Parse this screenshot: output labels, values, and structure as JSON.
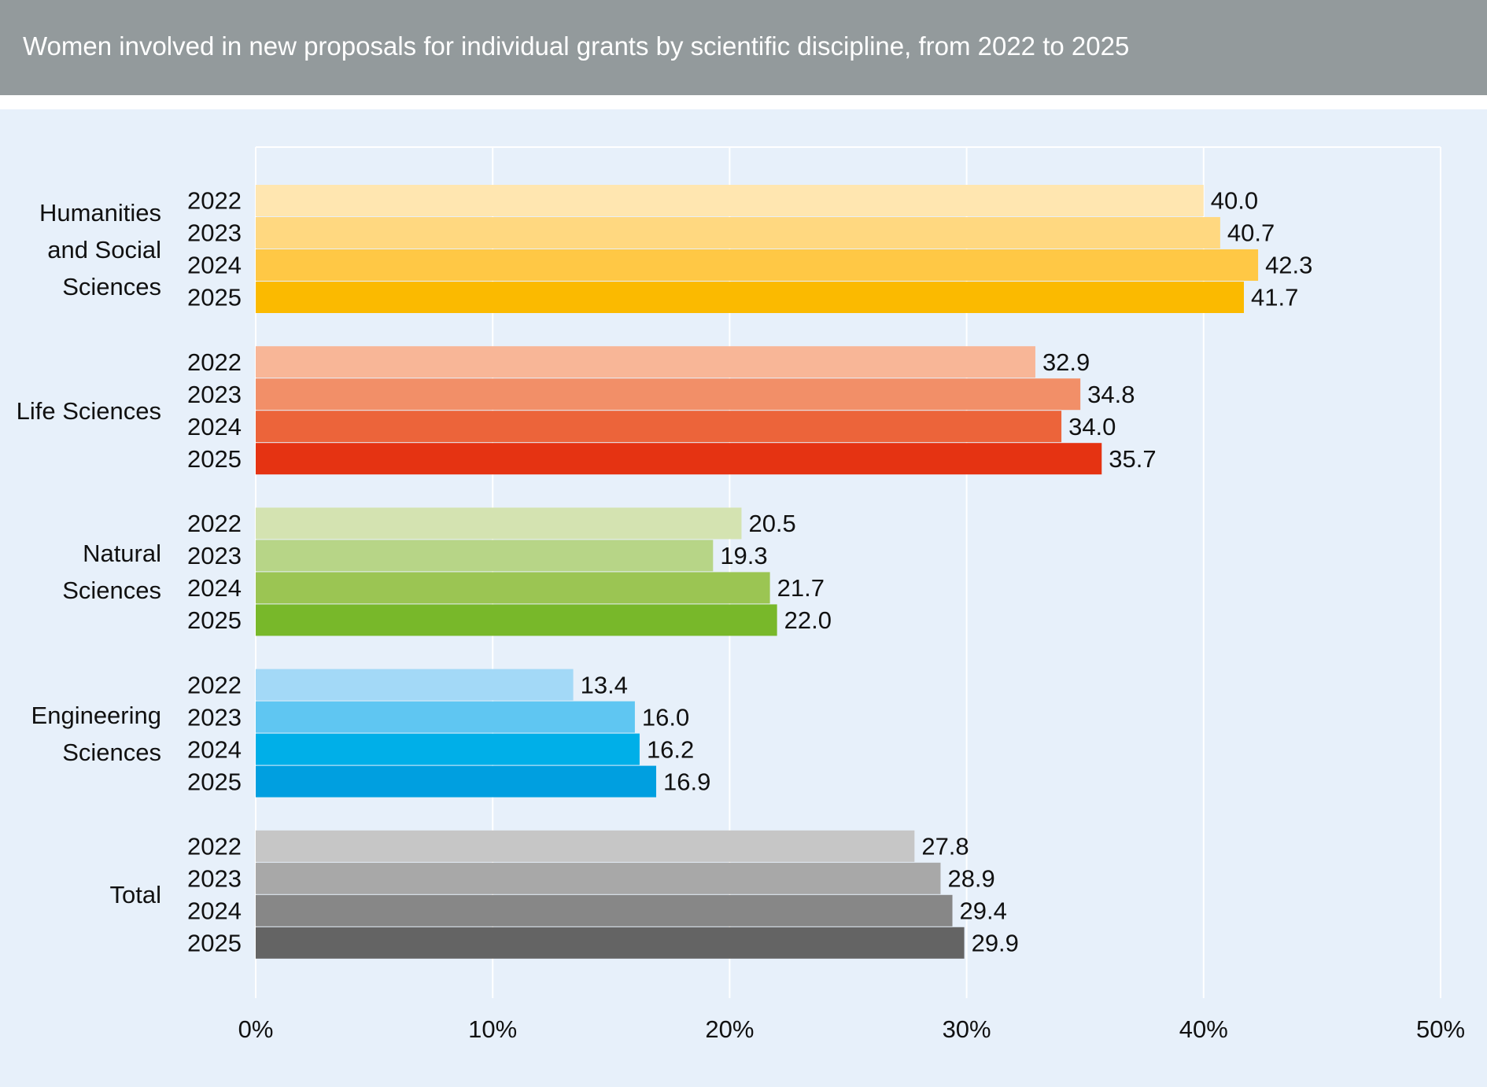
{
  "chart_data": {
    "type": "bar",
    "orientation": "horizontal",
    "title": "Women involved in new proposals for individual grants by scientific discipline, from 2022 to 2025",
    "categories": [
      "Humanities and Social Sciences",
      "Life Sciences",
      "Natural Sciences",
      "Engineering Sciences",
      "Total"
    ],
    "series": [
      {
        "name": "2022",
        "values": [
          40.0,
          32.9,
          20.5,
          13.4,
          27.8
        ],
        "value_labels": [
          "40.0",
          "32.9",
          "20.5",
          "13.4",
          "27.8"
        ],
        "colors": [
          "#ffe6b0",
          "#f8b697",
          "#d4e3b1",
          "#a3d9f7",
          "#c6c6c6"
        ]
      },
      {
        "name": "2023",
        "values": [
          40.7,
          34.8,
          19.3,
          16.0,
          28.9
        ],
        "value_labels": [
          "40.7",
          "34.8",
          "19.3",
          "16.0",
          "28.9"
        ],
        "colors": [
          "#ffd880",
          "#f28f68",
          "#b7d587",
          "#5fc6f2",
          "#a8a8a8"
        ]
      },
      {
        "name": "2024",
        "values": [
          42.3,
          34.0,
          21.7,
          16.2,
          29.4
        ],
        "value_labels": [
          "42.3",
          "34.0",
          "21.7",
          "16.2",
          "29.4"
        ],
        "colors": [
          "#ffc845",
          "#ec643a",
          "#9bc553",
          "#00afe8",
          "#878787"
        ]
      },
      {
        "name": "2025",
        "values": [
          41.7,
          35.7,
          22.0,
          16.9,
          29.9
        ],
        "value_labels": [
          "41.7",
          "35.7",
          "22.0",
          "16.9",
          "29.9"
        ],
        "colors": [
          "#fbba00",
          "#e53312",
          "#78b82a",
          "#009fe0",
          "#646464"
        ]
      }
    ],
    "xlim": [
      0,
      50
    ],
    "xticks": [
      {
        "value": 0,
        "label": "0%"
      },
      {
        "value": 10,
        "label": "10%"
      },
      {
        "value": 20,
        "label": "20%"
      },
      {
        "value": 30,
        "label": "30%"
      },
      {
        "value": 40,
        "label": "40%"
      },
      {
        "value": 50,
        "label": "50%"
      }
    ],
    "grid": true
  }
}
